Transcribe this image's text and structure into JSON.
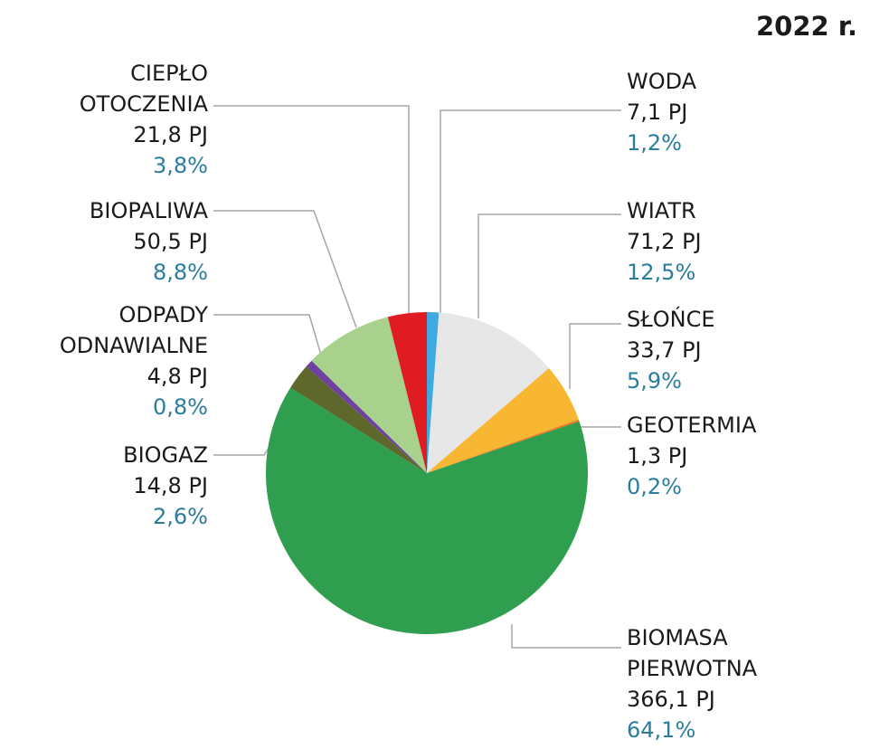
{
  "title": "2022 r.",
  "chart_data": {
    "type": "pie",
    "title": "2022 r.",
    "start_angle_deg": 0,
    "direction": "clockwise",
    "legend_position": "callout-labels-around-pie",
    "percent_color": "#2a7d9c",
    "leader_line_color": "#a6a6a6",
    "slices": [
      {
        "name": "WODA",
        "value_pj": "7,1 PJ",
        "percent_label": "1,2%",
        "percent": 1.2,
        "color": "#3fa9e0"
      },
      {
        "name": "WIATR",
        "value_pj": "71,2 PJ",
        "percent_label": "12,5%",
        "percent": 12.5,
        "color": "#e7e7e7"
      },
      {
        "name": "SŁOŃCE",
        "value_pj": "33,7 PJ",
        "percent_label": "5,9%",
        "percent": 5.9,
        "color": "#f7b733"
      },
      {
        "name": "GEOTERMIA",
        "value_pj": "1,3 PJ",
        "percent_label": "0,2%",
        "percent": 0.2,
        "color": "#e87722"
      },
      {
        "name": "BIOMASA PIERWOTNA",
        "value_pj": "366,1 PJ",
        "percent_label": "64,1%",
        "percent": 64.1,
        "color": "#2f9e4f"
      },
      {
        "name": "BIOGAZ",
        "value_pj": "14,8 PJ",
        "percent_label": "2,6%",
        "percent": 2.6,
        "color": "#5e682c"
      },
      {
        "name": "ODPADY ODNAWIALNE",
        "value_pj": "4,8 PJ",
        "percent_label": "0,8%",
        "percent": 0.8,
        "color": "#6f42a0"
      },
      {
        "name": "BIOPALIWA",
        "value_pj": "50,5 PJ",
        "percent_label": "8,8%",
        "percent": 8.8,
        "color": "#a9d18e"
      },
      {
        "name": "CIEPŁO OTOCZENIA",
        "value_pj": "21,8 PJ",
        "percent_label": "3,8%",
        "percent": 3.8,
        "color": "#e11b22"
      }
    ]
  }
}
